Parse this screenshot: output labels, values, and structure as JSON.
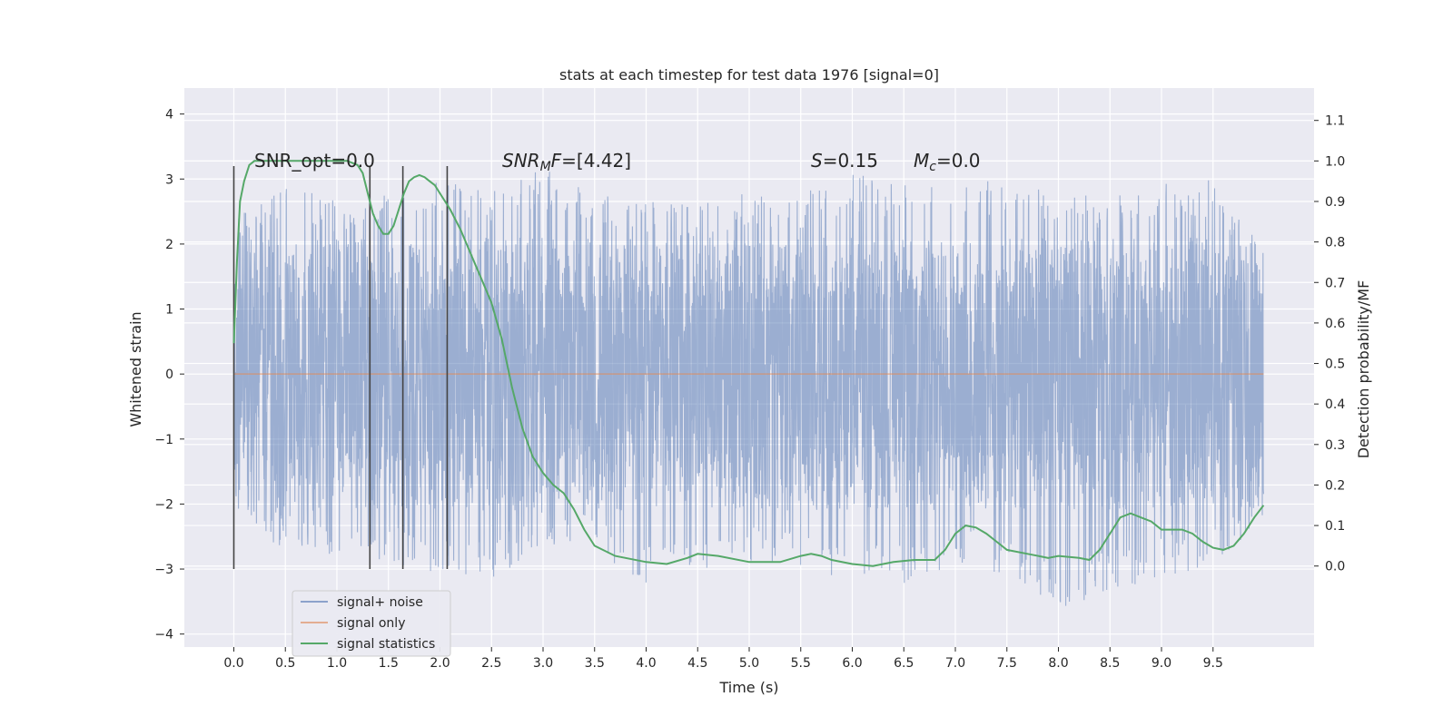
{
  "chart_data": {
    "type": "line",
    "title": "stats at each timestep for test data 1976 [signal=0]",
    "xlabel": "Time (s)",
    "ylabel_left": "Whitened strain",
    "ylabel_right": "Detection probability/MF",
    "xlim": [
      -0.48,
      10.48
    ],
    "ylim_left": [
      -4.2,
      4.4
    ],
    "ylim_right": [
      -0.2,
      1.18
    ],
    "x_ticks": [
      "0.0",
      "0.5",
      "1.0",
      "1.5",
      "2.0",
      "2.5",
      "3.0",
      "3.5",
      "4.0",
      "4.5",
      "5.0",
      "5.5",
      "6.0",
      "6.5",
      "7.0",
      "7.5",
      "8.0",
      "8.5",
      "9.0",
      "9.5"
    ],
    "y_left_ticks": [
      "4",
      "3",
      "2",
      "1",
      "0",
      "−1",
      "−2",
      "−3",
      "−4"
    ],
    "y_right_ticks": [
      "1.1",
      "1.0",
      "0.9",
      "0.8",
      "0.7",
      "0.6",
      "0.5",
      "0.4",
      "0.3",
      "0.2",
      "0.1",
      "0.0"
    ],
    "grid": true,
    "legend_position": "lower-left",
    "annotations": {
      "snr_opt": "SNR_opt=0.0",
      "snr_mf_main": "SNR",
      "snr_mf_sub": "M",
      "snr_mf_rest": "F=[4.42]",
      "s_label": "S",
      "s_value": "=0.15",
      "mc_main": "M",
      "mc_sub": "c",
      "mc_value": "=0.0"
    },
    "vertical_markers_x": [
      0.0,
      1.32,
      1.64,
      2.07
    ],
    "vertical_markers_range": [
      -3.0,
      3.2
    ],
    "series": [
      {
        "name": "signal+ noise",
        "color": "#4c72b0",
        "x_range": [
          0.0,
          9.99
        ],
        "envelope_upper": [
          [
            0.0,
            2.4
          ],
          [
            0.5,
            2.9
          ],
          [
            1.0,
            2.7
          ],
          [
            1.5,
            2.8
          ],
          [
            2.0,
            3.0
          ],
          [
            2.5,
            2.9
          ],
          [
            3.0,
            3.2
          ],
          [
            3.5,
            2.8
          ],
          [
            4.0,
            2.7
          ],
          [
            4.5,
            2.6
          ],
          [
            5.0,
            2.8
          ],
          [
            5.5,
            2.8
          ],
          [
            6.0,
            3.1
          ],
          [
            6.5,
            2.9
          ],
          [
            7.0,
            3.1
          ],
          [
            7.5,
            2.9
          ],
          [
            8.0,
            2.8
          ],
          [
            8.5,
            2.7
          ],
          [
            9.0,
            3.0
          ],
          [
            9.5,
            3.0
          ],
          [
            9.99,
            1.9
          ]
        ],
        "envelope_lower": [
          [
            0.0,
            -2.4
          ],
          [
            0.5,
            -2.7
          ],
          [
            1.0,
            -2.8
          ],
          [
            1.5,
            -2.9
          ],
          [
            2.0,
            -3.1
          ],
          [
            2.5,
            -3.2
          ],
          [
            3.0,
            -2.6
          ],
          [
            3.5,
            -2.7
          ],
          [
            4.0,
            -3.3
          ],
          [
            4.5,
            -3.2
          ],
          [
            5.0,
            -2.9
          ],
          [
            5.5,
            -3.0
          ],
          [
            6.0,
            -3.2
          ],
          [
            6.5,
            -3.3
          ],
          [
            7.0,
            -2.9
          ],
          [
            7.5,
            -3.1
          ],
          [
            8.0,
            -3.6
          ],
          [
            8.5,
            -3.4
          ],
          [
            9.0,
            -3.1
          ],
          [
            9.5,
            -3.0
          ],
          [
            9.99,
            -2.2
          ]
        ]
      },
      {
        "name": "signal only",
        "color": "#dd8452",
        "x": [
          0.0,
          9.99
        ],
        "y": [
          0.0,
          0.0
        ]
      },
      {
        "name": "signal statistics",
        "color": "#55a868",
        "axis": "right",
        "x": [
          0.0,
          0.03,
          0.06,
          0.1,
          0.15,
          0.2,
          0.3,
          0.5,
          0.7,
          0.9,
          1.0,
          1.1,
          1.2,
          1.25,
          1.3,
          1.35,
          1.4,
          1.45,
          1.5,
          1.55,
          1.6,
          1.65,
          1.7,
          1.75,
          1.8,
          1.85,
          1.9,
          1.95,
          2.0,
          2.1,
          2.2,
          2.3,
          2.4,
          2.5,
          2.6,
          2.7,
          2.8,
          2.9,
          3.0,
          3.1,
          3.2,
          3.3,
          3.4,
          3.5,
          3.7,
          4.0,
          4.2,
          4.4,
          4.5,
          4.7,
          5.0,
          5.3,
          5.5,
          5.6,
          5.7,
          5.8,
          6.0,
          6.2,
          6.4,
          6.6,
          6.8,
          6.9,
          7.0,
          7.1,
          7.2,
          7.3,
          7.4,
          7.5,
          7.7,
          7.9,
          8.0,
          8.2,
          8.3,
          8.4,
          8.5,
          8.6,
          8.7,
          8.8,
          8.9,
          9.0,
          9.1,
          9.2,
          9.3,
          9.4,
          9.5,
          9.6,
          9.7,
          9.8,
          9.9,
          9.99
        ],
        "y": [
          0.55,
          0.75,
          0.9,
          0.95,
          0.99,
          1.0,
          1.0,
          1.0,
          1.0,
          1.0,
          1.0,
          1.0,
          0.99,
          0.97,
          0.92,
          0.87,
          0.84,
          0.82,
          0.82,
          0.84,
          0.88,
          0.92,
          0.95,
          0.96,
          0.965,
          0.96,
          0.95,
          0.94,
          0.92,
          0.88,
          0.83,
          0.77,
          0.71,
          0.65,
          0.56,
          0.44,
          0.34,
          0.27,
          0.23,
          0.2,
          0.18,
          0.14,
          0.09,
          0.05,
          0.025,
          0.01,
          0.005,
          0.02,
          0.03,
          0.025,
          0.01,
          0.01,
          0.025,
          0.03,
          0.025,
          0.015,
          0.005,
          0.0,
          0.01,
          0.015,
          0.015,
          0.04,
          0.08,
          0.1,
          0.095,
          0.08,
          0.06,
          0.04,
          0.03,
          0.02,
          0.025,
          0.02,
          0.015,
          0.04,
          0.08,
          0.12,
          0.13,
          0.12,
          0.11,
          0.09,
          0.09,
          0.09,
          0.08,
          0.06,
          0.045,
          0.04,
          0.05,
          0.08,
          0.12,
          0.15
        ]
      }
    ]
  }
}
